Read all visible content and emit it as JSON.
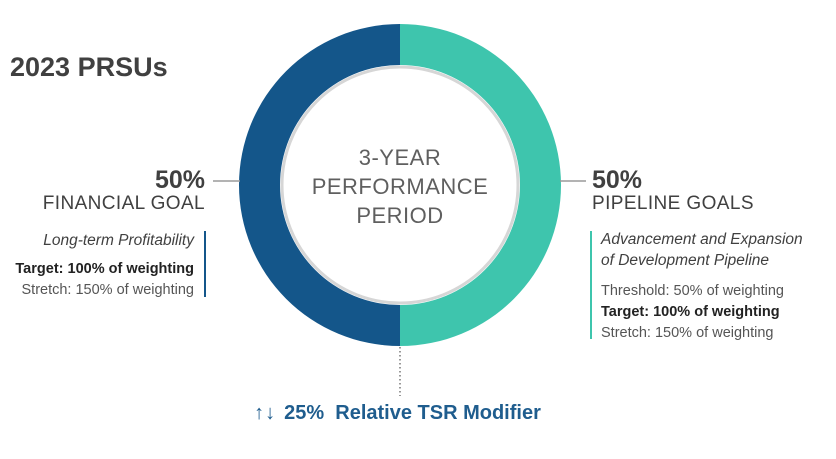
{
  "title": "2023 PRSUs",
  "center_label": [
    "3-YEAR",
    "PERFORMANCE",
    "PERIOD"
  ],
  "financial": {
    "percent": "50%",
    "name": "FINANCIAL GOAL",
    "description": "Long-term Profitability",
    "target_label": "Target: 100% of weighting",
    "stretch_label": "Stretch: 150% of weighting"
  },
  "pipeline": {
    "percent": "50%",
    "name": "PIPELINE GOALS",
    "description_line1": "Advancement and Expansion",
    "description_line2": "of Development Pipeline",
    "threshold_label": "Threshold: 50% of weighting",
    "target_label": "Target: 100% of weighting",
    "stretch_label": "Stretch: 150% of weighting"
  },
  "modifier": {
    "arrows": "↑↓",
    "label": "25%  Relative TSR Modifier"
  },
  "colors": {
    "financial": "#14568a",
    "pipeline": "#3ec5ad",
    "inner_ring": "#d6d6d6",
    "modifier_text": "#1f5d8e"
  },
  "chart_data": {
    "type": "pie",
    "title": "2023 PRSUs",
    "categories": [
      "FINANCIAL GOAL",
      "PIPELINE GOALS"
    ],
    "values": [
      50,
      50
    ],
    "center_label": "3-YEAR PERFORMANCE PERIOD"
  }
}
